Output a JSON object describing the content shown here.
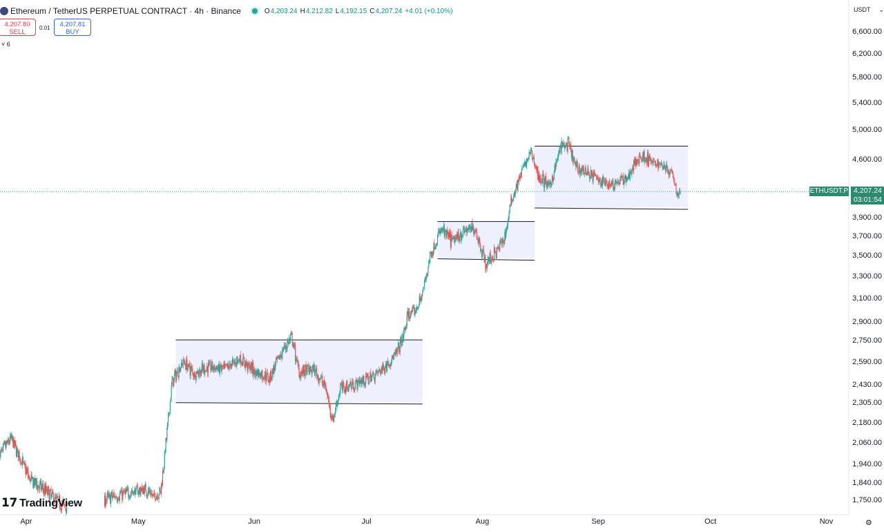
{
  "header": {
    "symbol_title": "Ethereum / TetherUS PERPETUAL CONTRACT · 4h · Binance",
    "open_label": "O",
    "open": "4,203.24",
    "high_label": "H",
    "high": "4,212.82",
    "low_label": "L",
    "low": "4,192.15",
    "close_label": "C",
    "close": "4,207.24",
    "change": "+4.01 (+0.10%)"
  },
  "trade": {
    "sell_price": "4,207.80",
    "sell_label": "SELL",
    "spread": "0.01",
    "buy_price": "4,207.81",
    "buy_label": "BUY"
  },
  "indicators_toggle": "˅ 6",
  "currency_label": "USDT",
  "price_tag": {
    "symbol": "ETHUSDT.P",
    "price": "4,207.24",
    "countdown": "03:01:54"
  },
  "logo_text": "TradingView",
  "colors": {
    "up": "#26a69a",
    "down": "#ef5350",
    "range_fill": "#eef0fd",
    "range_line": "#131722"
  },
  "chart_data": {
    "type": "candlestick",
    "interval": "4h",
    "y_scale": "log",
    "ylim": [
      1720,
      6800
    ],
    "y_ticks": [
      "6,600.00",
      "6,200.00",
      "5,800.00",
      "5,400.00",
      "5,000.00",
      "4,600.00",
      "3,900.00",
      "3,700.00",
      "3,500.00",
      "3,300.00",
      "3,100.00",
      "2,900.00",
      "2,750.00",
      "2,590.00",
      "2,430.00",
      "2,305.00",
      "2,180.00",
      "2,060.00",
      "1,940.00",
      "1,840.00",
      "1,750.00"
    ],
    "x_ticks": [
      "Apr",
      "May",
      "Jun",
      "Jul",
      "Aug",
      "Sep",
      "Oct",
      "Nov"
    ],
    "x_range": [
      "2025-03-25",
      "2025-11-07"
    ],
    "last_price": 4207.24,
    "price_path": [
      [
        "2025-03-25",
        2000
      ],
      [
        "2025-03-28",
        2090
      ],
      [
        "2025-04-02",
        1860
      ],
      [
        "2025-04-07",
        1790
      ],
      [
        "2025-04-10",
        1740
      ],
      [
        "2025-04-12",
        1720
      ],
      [
        "2025-04-22",
        1760
      ],
      [
        "2025-04-28",
        1790
      ],
      [
        "2025-05-03",
        1810
      ],
      [
        "2025-05-05",
        1770
      ],
      [
        "2025-05-07",
        1800
      ],
      [
        "2025-05-09",
        2200
      ],
      [
        "2025-05-10",
        2450
      ],
      [
        "2025-05-13",
        2600
      ],
      [
        "2025-05-16",
        2510
      ],
      [
        "2025-05-20",
        2560
      ],
      [
        "2025-05-24",
        2540
      ],
      [
        "2025-05-28",
        2620
      ],
      [
        "2025-06-01",
        2530
      ],
      [
        "2025-06-05",
        2480
      ],
      [
        "2025-06-09",
        2700
      ],
      [
        "2025-06-11",
        2780
      ],
      [
        "2025-06-13",
        2520
      ],
      [
        "2025-06-17",
        2540
      ],
      [
        "2025-06-20",
        2420
      ],
      [
        "2025-06-22",
        2200
      ],
      [
        "2025-06-24",
        2410
      ],
      [
        "2025-06-28",
        2440
      ],
      [
        "2025-07-02",
        2480
      ],
      [
        "2025-07-05",
        2540
      ],
      [
        "2025-07-09",
        2650
      ],
      [
        "2025-07-11",
        2800
      ],
      [
        "2025-07-12",
        2960
      ],
      [
        "2025-07-14",
        2990
      ],
      [
        "2025-07-16",
        3150
      ],
      [
        "2025-07-18",
        3500
      ],
      [
        "2025-07-21",
        3780
      ],
      [
        "2025-07-24",
        3650
      ],
      [
        "2025-07-27",
        3760
      ],
      [
        "2025-07-30",
        3790
      ],
      [
        "2025-08-02",
        3420
      ],
      [
        "2025-08-05",
        3560
      ],
      [
        "2025-08-07",
        3700
      ],
      [
        "2025-08-09",
        4150
      ],
      [
        "2025-08-12",
        4500
      ],
      [
        "2025-08-14",
        4700
      ],
      [
        "2025-08-16",
        4400
      ],
      [
        "2025-08-19",
        4260
      ],
      [
        "2025-08-22",
        4780
      ],
      [
        "2025-08-24",
        4800
      ],
      [
        "2025-08-26",
        4500
      ],
      [
        "2025-08-29",
        4450
      ],
      [
        "2025-09-02",
        4320
      ],
      [
        "2025-09-05",
        4300
      ],
      [
        "2025-09-09",
        4380
      ],
      [
        "2025-09-12",
        4650
      ],
      [
        "2025-09-14",
        4630
      ],
      [
        "2025-09-16",
        4540
      ],
      [
        "2025-09-18",
        4550
      ],
      [
        "2025-09-20",
        4470
      ],
      [
        "2025-09-21",
        4460
      ],
      [
        "2025-09-22",
        4180
      ],
      [
        "2025-09-23",
        4200
      ]
    ],
    "ranges": [
      {
        "start": "2025-05-11",
        "end": "2025-07-16",
        "top": 2760,
        "bottom": 2315
      },
      {
        "start": "2025-07-20",
        "end": "2025-08-15",
        "top": 3860,
        "bottom": 3480
      },
      {
        "start": "2025-08-15",
        "end": "2025-09-25",
        "top": 4780,
        "bottom": 4020
      }
    ]
  }
}
